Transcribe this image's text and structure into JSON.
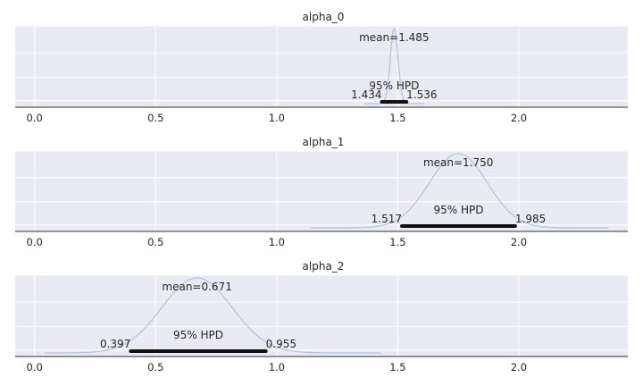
{
  "chart_data": [
    {
      "type": "line",
      "title": "alpha_0",
      "xlim": [
        -0.08,
        2.45
      ],
      "x_ticks": [
        "0.0",
        "0.5",
        "1.0",
        "1.5",
        "2.0"
      ],
      "kde": {
        "mean": 1.485,
        "sd": 0.016,
        "range": [
          1.36,
          1.61
        ]
      },
      "mean_label": "mean=1.485",
      "hpd_label": "95% HPD",
      "hpd": [
        1.434,
        1.536
      ],
      "hpd_labels": [
        "1.434",
        "1.536"
      ]
    },
    {
      "type": "line",
      "title": "alpha_1",
      "xlim": [
        -0.08,
        2.45
      ],
      "x_ticks": [
        "0.0",
        "0.5",
        "1.0",
        "1.5",
        "2.0"
      ],
      "kde": {
        "mean": 1.75,
        "sd": 0.12,
        "range": [
          1.14,
          2.37
        ]
      },
      "mean_label": "mean=1.750",
      "hpd_label": "95% HPD",
      "hpd": [
        1.517,
        1.985
      ],
      "hpd_labels": [
        "1.517",
        "1.985"
      ]
    },
    {
      "type": "line",
      "title": "alpha_2",
      "xlim": [
        -0.08,
        2.45
      ],
      "x_ticks": [
        "0.0",
        "0.5",
        "1.0",
        "1.5",
        "2.0"
      ],
      "kde": {
        "mean": 0.671,
        "sd": 0.145,
        "range": [
          0.04,
          1.43
        ]
      },
      "mean_label": "mean=0.671",
      "hpd_label": "95% HPD",
      "hpd": [
        0.397,
        0.955
      ],
      "hpd_labels": [
        "0.397",
        "0.955"
      ]
    }
  ]
}
